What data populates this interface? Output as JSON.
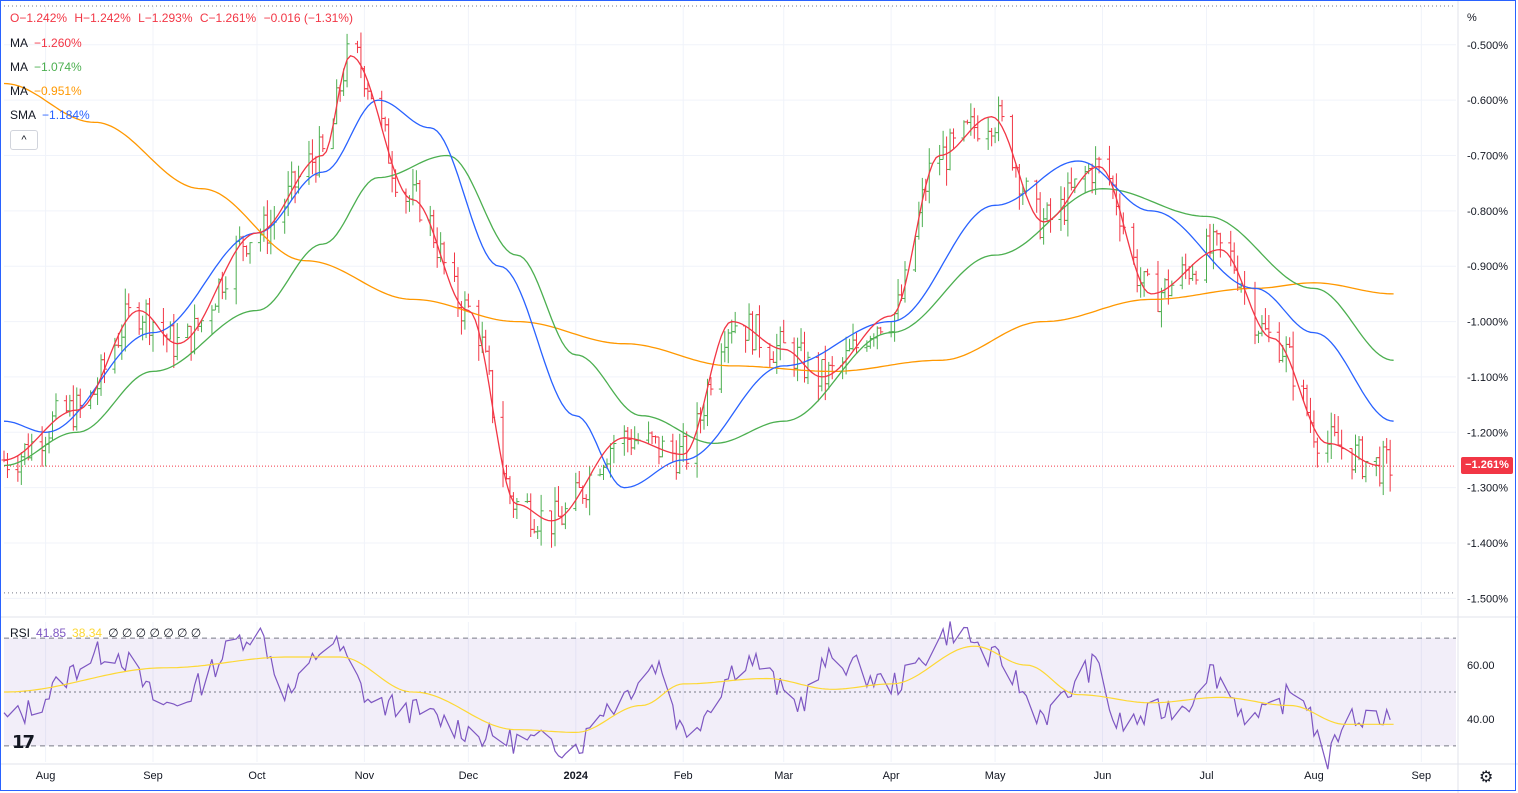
{
  "header": {
    "open": "O−1.242%",
    "high": "H−1.242%",
    "low": "L−1.293%",
    "close": "C−1.261%",
    "change": "−0.016 (−1.31%)"
  },
  "indicators": [
    {
      "name": "MA",
      "value": "−1.260%",
      "color": "#f23645"
    },
    {
      "name": "MA",
      "value": "−1.074%",
      "color": "#4caf50"
    },
    {
      "name": "MA",
      "value": "−0.951%",
      "color": "#ff9800"
    },
    {
      "name": "SMA",
      "value": "−1.184%",
      "color": "#2962ff"
    }
  ],
  "collapse_glyph": "^",
  "rsi_legend": {
    "name": "RSI",
    "value": "41.85",
    "ma_value": "38.34",
    "extra": "∅ ∅ ∅ ∅ ∅ ∅ ∅"
  },
  "price_axis_unit": "%",
  "last_price_label": "−1.261%",
  "logo_text": "17",
  "colors": {
    "bull": "#4caf50",
    "bear": "#f23645",
    "ma_fast": "#f23645",
    "ma_mid": "#4caf50",
    "ma_slow": "#ff9800",
    "sma": "#2962ff",
    "rsi": "#7e57c2",
    "rsi_ma": "#fdd835"
  },
  "chart_data": {
    "type": "ohlc",
    "y_unit": "%",
    "ylim": [
      -1.53,
      -0.43
    ],
    "y_ticks": [
      "-0.500%",
      "-0.600%",
      "-0.700%",
      "-0.800%",
      "-0.900%",
      "-1.000%",
      "-1.100%",
      "-1.200%",
      "-1.300%",
      "-1.400%",
      "-1.500%"
    ],
    "y_tick_values": [
      -0.5,
      -0.6,
      -0.7,
      -0.8,
      -0.9,
      -1.0,
      -1.1,
      -1.2,
      -1.3,
      -1.4,
      -1.5
    ],
    "x_tick_labels": [
      "Aug",
      "Sep",
      "Oct",
      "Nov",
      "Dec",
      "2024",
      "Feb",
      "Mar",
      "Apr",
      "May",
      "Jun",
      "Jul",
      "Aug",
      "Sep"
    ],
    "x_tick_dates": [
      "2023-08-01",
      "2023-09-01",
      "2023-10-01",
      "2023-11-01",
      "2023-12-01",
      "2024-01-01",
      "2024-02-01",
      "2024-03-01",
      "2024-04-01",
      "2024-05-01",
      "2024-06-01",
      "2024-07-01",
      "2024-08-01",
      "2024-09-01"
    ],
    "date_range": [
      "2023-07-20",
      "2024-09-11"
    ],
    "last_price": -1.261,
    "ref_high": -0.43,
    "ref_low": -1.49,
    "ma_key_points": {
      "ma_fast": [
        [
          "2023-07-20",
          -1.25
        ],
        [
          "2023-08-10",
          -1.16
        ],
        [
          "2023-08-28",
          -0.98
        ],
        [
          "2023-09-08",
          -1.04
        ],
        [
          "2023-10-01",
          -0.84
        ],
        [
          "2023-10-20",
          -0.7
        ],
        [
          "2023-10-28",
          -0.52
        ],
        [
          "2023-11-15",
          -0.78
        ],
        [
          "2023-12-01",
          -0.98
        ],
        [
          "2023-12-15",
          -1.33
        ],
        [
          "2023-12-25",
          -1.36
        ],
        [
          "2024-01-15",
          -1.21
        ],
        [
          "2024-02-01",
          -1.24
        ],
        [
          "2024-02-15",
          -1.0
        ],
        [
          "2024-03-01",
          -1.05
        ],
        [
          "2024-03-12",
          -1.1
        ],
        [
          "2024-04-01",
          -0.99
        ],
        [
          "2024-04-15",
          -0.7
        ],
        [
          "2024-04-30",
          -0.63
        ],
        [
          "2024-05-15",
          -0.82
        ],
        [
          "2024-05-31",
          -0.72
        ],
        [
          "2024-06-15",
          -0.95
        ],
        [
          "2024-07-05",
          -0.87
        ],
        [
          "2024-07-20",
          -1.03
        ],
        [
          "2024-08-05",
          -1.22
        ],
        [
          "2024-08-20",
          -1.26
        ]
      ],
      "ma_mid": [
        [
          "2023-07-20",
          -1.26
        ],
        [
          "2023-08-10",
          -1.2
        ],
        [
          "2023-09-01",
          -1.09
        ],
        [
          "2023-10-01",
          -0.98
        ],
        [
          "2023-10-20",
          -0.86
        ],
        [
          "2023-11-05",
          -0.74
        ],
        [
          "2023-11-25",
          -0.7
        ],
        [
          "2023-12-15",
          -0.88
        ],
        [
          "2024-01-01",
          -1.06
        ],
        [
          "2024-01-20",
          -1.17
        ],
        [
          "2024-02-10",
          -1.22
        ],
        [
          "2024-03-01",
          -1.18
        ],
        [
          "2024-04-01",
          -1.02
        ],
        [
          "2024-05-01",
          -0.88
        ],
        [
          "2024-06-01",
          -0.76
        ],
        [
          "2024-07-01",
          -0.81
        ],
        [
          "2024-08-01",
          -0.94
        ],
        [
          "2024-08-24",
          -1.07
        ]
      ],
      "ma_slow": [
        [
          "2023-07-20",
          -0.57
        ],
        [
          "2023-08-15",
          -0.64
        ],
        [
          "2023-09-15",
          -0.76
        ],
        [
          "2023-10-15",
          -0.89
        ],
        [
          "2023-11-15",
          -0.96
        ],
        [
          "2023-12-15",
          -1.0
        ],
        [
          "2024-01-15",
          -1.04
        ],
        [
          "2024-02-15",
          -1.08
        ],
        [
          "2024-03-15",
          -1.09
        ],
        [
          "2024-04-15",
          -1.07
        ],
        [
          "2024-05-15",
          -1.0
        ],
        [
          "2024-06-15",
          -0.96
        ],
        [
          "2024-07-15",
          -0.94
        ],
        [
          "2024-08-01",
          -0.93
        ],
        [
          "2024-08-24",
          -0.95
        ]
      ],
      "sma": [
        [
          "2023-07-20",
          -1.18
        ],
        [
          "2023-08-01",
          -1.2
        ],
        [
          "2023-09-01",
          -1.02
        ],
        [
          "2023-10-01",
          -0.84
        ],
        [
          "2023-10-20",
          -0.73
        ],
        [
          "2023-11-05",
          -0.6
        ],
        [
          "2023-11-20",
          -0.65
        ],
        [
          "2023-12-10",
          -0.9
        ],
        [
          "2024-01-01",
          -1.17
        ],
        [
          "2024-01-15",
          -1.3
        ],
        [
          "2024-02-01",
          -1.25
        ],
        [
          "2024-03-01",
          -1.08
        ],
        [
          "2024-04-01",
          -1.0
        ],
        [
          "2024-05-01",
          -0.79
        ],
        [
          "2024-05-25",
          -0.71
        ],
        [
          "2024-06-15",
          -0.8
        ],
        [
          "2024-07-15",
          -0.94
        ],
        [
          "2024-08-01",
          -1.02
        ],
        [
          "2024-08-24",
          -1.18
        ]
      ]
    },
    "rsi": {
      "levels": [
        70,
        50,
        30
      ],
      "y_ticks": [
        "60.00",
        "40.00"
      ],
      "y_tick_values": [
        60,
        40
      ],
      "ylim": [
        24,
        76
      ],
      "key_points": [
        [
          "2023-07-20",
          40
        ],
        [
          "2023-08-20",
          65
        ],
        [
          "2023-09-05",
          45
        ],
        [
          "2023-10-01",
          72
        ],
        [
          "2023-10-10",
          50
        ],
        [
          "2023-10-22",
          68
        ],
        [
          "2023-11-05",
          45
        ],
        [
          "2023-12-15",
          32
        ],
        [
          "2024-01-01",
          30
        ],
        [
          "2024-01-10",
          45
        ],
        [
          "2024-01-25",
          60
        ],
        [
          "2024-02-01",
          36
        ],
        [
          "2024-02-20",
          62
        ],
        [
          "2024-03-05",
          46
        ],
        [
          "2024-03-15",
          62
        ],
        [
          "2024-04-01",
          53
        ],
        [
          "2024-04-20",
          73
        ],
        [
          "2024-05-01",
          62
        ],
        [
          "2024-05-15",
          42
        ],
        [
          "2024-05-31",
          60
        ],
        [
          "2024-06-05",
          38
        ],
        [
          "2024-06-25",
          45
        ],
        [
          "2024-07-01",
          58
        ],
        [
          "2024-07-15",
          40
        ],
        [
          "2024-07-28",
          50
        ],
        [
          "2024-08-05",
          25
        ],
        [
          "2024-08-10",
          40
        ],
        [
          "2024-08-24",
          42
        ]
      ],
      "ma_key_points": [
        [
          "2023-07-20",
          50
        ],
        [
          "2023-09-05",
          59
        ],
        [
          "2023-10-10",
          63
        ],
        [
          "2023-10-25",
          63
        ],
        [
          "2023-11-15",
          50
        ],
        [
          "2023-12-15",
          36
        ],
        [
          "2024-01-01",
          35
        ],
        [
          "2024-01-20",
          45
        ],
        [
          "2024-02-01",
          53
        ],
        [
          "2024-02-25",
          55
        ],
        [
          "2024-03-15",
          51
        ],
        [
          "2024-04-01",
          53
        ],
        [
          "2024-04-25",
          67
        ],
        [
          "2024-05-10",
          60
        ],
        [
          "2024-05-25",
          49
        ],
        [
          "2024-06-15",
          46
        ],
        [
          "2024-07-05",
          48
        ],
        [
          "2024-07-25",
          45
        ],
        [
          "2024-08-10",
          38
        ],
        [
          "2024-08-24",
          38
        ]
      ]
    }
  }
}
